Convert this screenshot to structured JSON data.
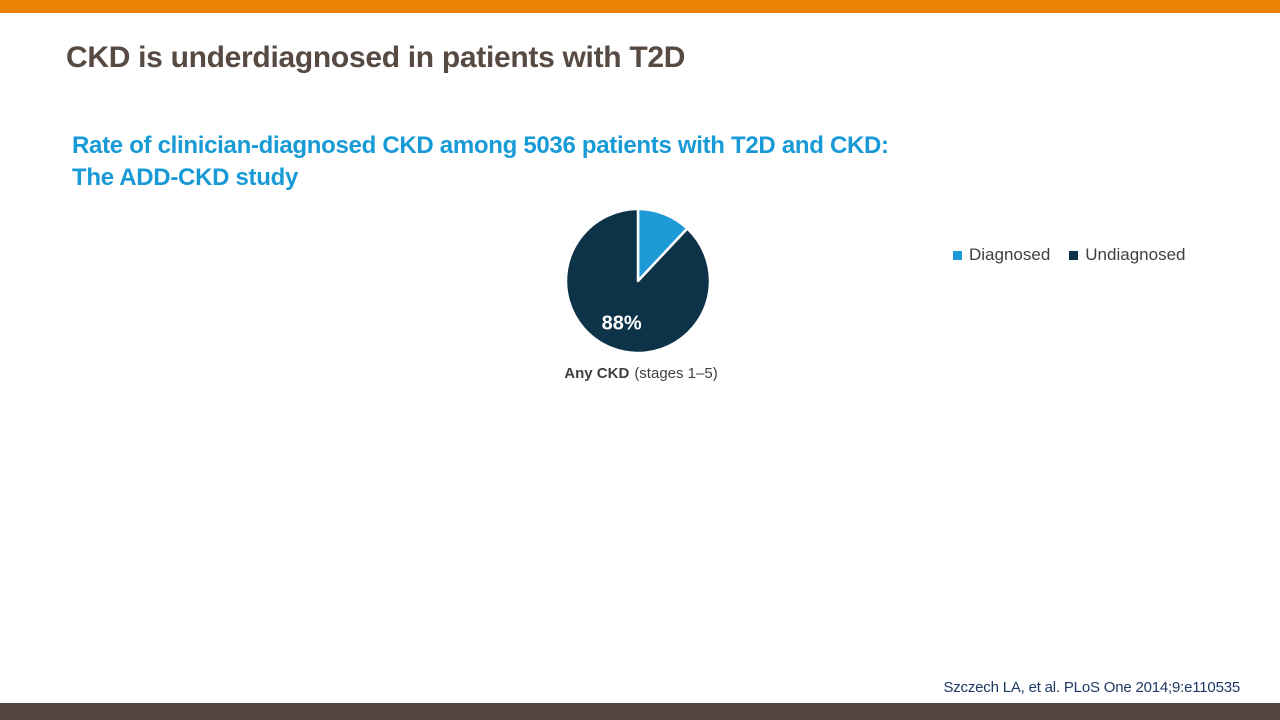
{
  "slide": {
    "title": "CKD is underdiagnosed in patients with T2D",
    "subtitle_line1": "Rate of clinician-diagnosed CKD among 5036 patients with T2D and CKD:",
    "subtitle_line2": "The ADD-CKD study",
    "citation": "Szczech LA, et al. PLoS One 2014;9:e110535"
  },
  "colors": {
    "top_bar": "#EE8306",
    "bottom_bar": "#544741",
    "title_text": "#574A42",
    "subtitle_text": "#189AD6",
    "legend_text": "#404040",
    "caption_text": "#404040",
    "citation_text": "#1F3864"
  },
  "chart_data": {
    "type": "pie",
    "title": "",
    "categories": [
      "Diagnosed",
      "Undiagnosed"
    ],
    "values": [
      12,
      88
    ],
    "colors": [
      "#1E9BD7",
      "#0D3349"
    ],
    "data_labels": [
      "",
      "88%"
    ],
    "start_angle_deg": 0,
    "direction": "clockwise",
    "legend_position": "right",
    "slice_separator_color": "#FFFFFF",
    "caption": {
      "bold": "Any CKD",
      "rest": "(stages 1–5)"
    }
  }
}
